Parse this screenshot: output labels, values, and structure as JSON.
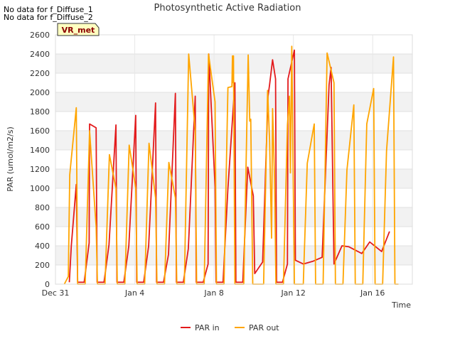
{
  "notes": [
    "No data for f_Diffuse_1",
    "No data for f_Diffuse_2"
  ],
  "chart_data": {
    "type": "line",
    "title": "Photosynthetic Active Radiation",
    "xlabel": "Time",
    "ylabel": "PAR (umol/m2/s)",
    "badge": "VR_met",
    "ylim": [
      0,
      2600
    ],
    "xlim": [
      0,
      18
    ],
    "y_ticks": [
      0,
      200,
      400,
      600,
      800,
      1000,
      1200,
      1400,
      1600,
      1800,
      2000,
      2200,
      2400,
      2600
    ],
    "x_ticks": [
      {
        "x": 0,
        "label": "Dec 31"
      },
      {
        "x": 4,
        "label": "Jan 4"
      },
      {
        "x": 8,
        "label": "Jan 8"
      },
      {
        "x": 12,
        "label": "Jan 12"
      },
      {
        "x": 16,
        "label": "Jan 16"
      }
    ],
    "grid": true,
    "legend_position": "bottom",
    "series": [
      {
        "name": "PAR in",
        "color": "#e31a1c",
        "points": [
          [
            0.7,
            20
          ],
          [
            0.8,
            400
          ],
          [
            1.05,
            1040
          ],
          [
            1.12,
            20
          ],
          [
            1.45,
            20
          ],
          [
            1.7,
            430
          ],
          [
            1.72,
            1670
          ],
          [
            2.05,
            1630
          ],
          [
            2.1,
            20
          ],
          [
            2.45,
            20
          ],
          [
            2.7,
            410
          ],
          [
            3.05,
            1660
          ],
          [
            3.1,
            20
          ],
          [
            3.45,
            20
          ],
          [
            3.7,
            400
          ],
          [
            4.05,
            1760
          ],
          [
            4.1,
            20
          ],
          [
            4.45,
            20
          ],
          [
            4.7,
            400
          ],
          [
            5.05,
            1890
          ],
          [
            5.1,
            20
          ],
          [
            5.45,
            20
          ],
          [
            5.7,
            310
          ],
          [
            6.05,
            1990
          ],
          [
            6.1,
            20
          ],
          [
            6.45,
            20
          ],
          [
            6.7,
            370
          ],
          [
            7.05,
            1960
          ],
          [
            7.1,
            20
          ],
          [
            7.45,
            20
          ],
          [
            7.7,
            210
          ],
          [
            7.73,
            2400
          ],
          [
            8.05,
            1020
          ],
          [
            8.1,
            20
          ],
          [
            8.45,
            20
          ],
          [
            8.7,
            1000
          ],
          [
            9.05,
            2100
          ],
          [
            9.1,
            20
          ],
          [
            9.45,
            20
          ],
          [
            9.7,
            1220
          ],
          [
            9.98,
            920
          ],
          [
            10.05,
            110
          ],
          [
            10.45,
            230
          ],
          [
            10.72,
            1960
          ],
          [
            10.8,
            2080
          ],
          [
            10.95,
            2340
          ],
          [
            11.1,
            2140
          ],
          [
            11.15,
            20
          ],
          [
            11.45,
            20
          ],
          [
            11.7,
            210
          ],
          [
            11.73,
            2140
          ],
          [
            12.05,
            2440
          ],
          [
            12.1,
            250
          ],
          [
            12.5,
            210
          ],
          [
            13.0,
            240
          ],
          [
            13.45,
            280
          ],
          [
            13.8,
            2080
          ],
          [
            13.9,
            2260
          ],
          [
            14.05,
            210
          ],
          [
            14.45,
            400
          ],
          [
            14.8,
            390
          ],
          [
            15.45,
            320
          ],
          [
            15.85,
            440
          ],
          [
            16.45,
            340
          ],
          [
            16.85,
            550
          ]
        ]
      },
      {
        "name": "PAR out",
        "color": "#ffa500",
        "points": [
          [
            0.45,
            0
          ],
          [
            0.65,
            80
          ],
          [
            0.72,
            1140
          ],
          [
            1.05,
            1840
          ],
          [
            1.12,
            0
          ],
          [
            1.5,
            0
          ],
          [
            1.72,
            1600
          ],
          [
            2.05,
            600
          ],
          [
            2.12,
            0
          ],
          [
            2.5,
            0
          ],
          [
            2.72,
            1350
          ],
          [
            3.05,
            1000
          ],
          [
            3.12,
            0
          ],
          [
            3.5,
            0
          ],
          [
            3.72,
            1450
          ],
          [
            4.05,
            1000
          ],
          [
            4.12,
            0
          ],
          [
            4.5,
            0
          ],
          [
            4.72,
            1470
          ],
          [
            5.05,
            900
          ],
          [
            5.12,
            0
          ],
          [
            5.5,
            0
          ],
          [
            5.72,
            1270
          ],
          [
            6.05,
            900
          ],
          [
            6.12,
            0
          ],
          [
            6.5,
            0
          ],
          [
            6.72,
            2400
          ],
          [
            7.05,
            1600
          ],
          [
            7.12,
            0
          ],
          [
            7.5,
            0
          ],
          [
            7.72,
            2400
          ],
          [
            8.05,
            1900
          ],
          [
            8.12,
            0
          ],
          [
            8.5,
            0
          ],
          [
            8.7,
            2050
          ],
          [
            8.9,
            2060
          ],
          [
            8.93,
            2380
          ],
          [
            8.96,
            2100
          ],
          [
            8.98,
            2380
          ],
          [
            9.05,
            0
          ],
          [
            9.5,
            0
          ],
          [
            9.72,
            2390
          ],
          [
            9.8,
            1700
          ],
          [
            9.85,
            1720
          ],
          [
            9.95,
            0
          ],
          [
            10.5,
            0
          ],
          [
            10.7,
            2020
          ],
          [
            10.8,
            1500
          ],
          [
            10.9,
            480
          ],
          [
            10.95,
            1830
          ],
          [
            11.05,
            1100
          ],
          [
            11.12,
            0
          ],
          [
            11.5,
            0
          ],
          [
            11.7,
            1660
          ],
          [
            11.8,
            1960
          ],
          [
            11.85,
            1160
          ],
          [
            11.92,
            2480
          ],
          [
            12.05,
            0
          ],
          [
            12.5,
            0
          ],
          [
            12.7,
            1260
          ],
          [
            13.05,
            1670
          ],
          [
            13.12,
            0
          ],
          [
            13.5,
            0
          ],
          [
            13.7,
            2410
          ],
          [
            14.05,
            2100
          ],
          [
            14.12,
            0
          ],
          [
            14.5,
            0
          ],
          [
            14.7,
            1190
          ],
          [
            15.05,
            1870
          ],
          [
            15.12,
            0
          ],
          [
            15.5,
            0
          ],
          [
            15.7,
            1670
          ],
          [
            16.05,
            2040
          ],
          [
            16.12,
            0
          ],
          [
            16.5,
            0
          ],
          [
            16.7,
            1390
          ],
          [
            17.05,
            2370
          ],
          [
            17.12,
            0
          ],
          [
            17.3,
            0
          ]
        ]
      }
    ]
  }
}
